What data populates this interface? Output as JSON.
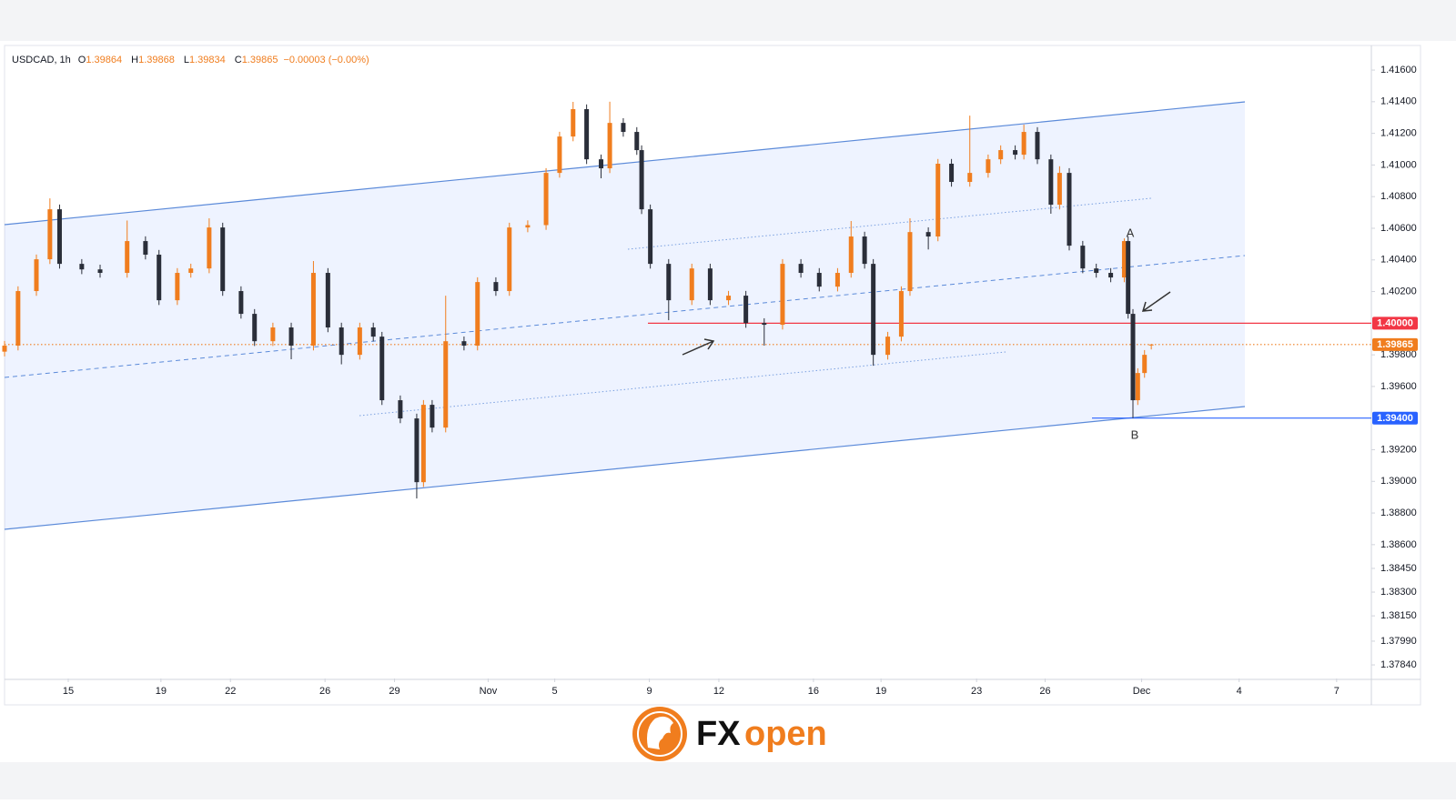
{
  "chart_data": {
    "type": "candlestick",
    "header": {
      "symbol": "USDCAD, 1h",
      "ohlc_prefixes": [
        "O",
        "H",
        "L",
        "C"
      ],
      "change": "−0.00003 (−0.00%)"
    },
    "x": [
      0,
      14,
      33,
      47,
      57,
      80,
      99,
      127,
      146,
      160,
      179,
      193,
      212,
      226,
      245,
      259,
      278,
      297,
      320,
      335,
      349,
      368,
      382,
      391,
      410,
      427,
      434,
      443,
      457,
      476,
      490,
      509,
      523,
      542,
      561,
      575,
      589,
      603,
      618,
      627,
      641,
      655,
      660,
      669,
      688,
      712,
      731,
      750,
      768,
      787,
      806,
      825,
      844,
      863,
      877,
      891,
      900,
      915,
      929,
      938,
      957,
      967,
      981,
      1000,
      1019,
      1032,
      1047,
      1056,
      1070,
      1084,
      1093,
      1103,
      1117,
      1131,
      1146,
      1160,
      1164,
      1169,
      1174,
      1181,
      1188
    ],
    "open": [
      1.3982,
      1.39858,
      1.40203,
      1.40404,
      1.4072,
      1.40375,
      1.4034,
      1.40318,
      1.40519,
      1.40433,
      1.40145,
      1.40318,
      1.40346,
      1.40605,
      1.40203,
      1.40059,
      1.39886,
      1.39973,
      1.39858,
      1.40318,
      1.39973,
      1.398,
      1.39973,
      1.39915,
      1.39513,
      1.39398,
      1.38995,
      1.39484,
      1.3934,
      1.39886,
      1.39858,
      1.4026,
      1.40203,
      1.40605,
      1.4062,
      1.4095,
      1.4118,
      1.41353,
      1.41036,
      1.40979,
      1.41266,
      1.41209,
      1.41094,
      1.4072,
      1.40375,
      1.40145,
      1.40346,
      1.40145,
      1.40174,
      1.40001,
      1.3999,
      1.40375,
      1.40318,
      1.40231,
      1.40318,
      1.40548,
      1.40375,
      1.398,
      1.39915,
      1.40203,
      1.40576,
      1.40548,
      1.41008,
      1.40893,
      1.4095,
      1.41036,
      1.41094,
      1.41065,
      1.41209,
      1.41036,
      1.40749,
      1.4095,
      1.4049,
      1.40346,
      1.40318,
      1.40289,
      1.40519,
      1.40059,
      1.39513,
      1.39685,
      1.39864
    ],
    "high": [
      1.39888,
      1.40233,
      1.40434,
      1.40789,
      1.4075,
      1.40405,
      1.4037,
      1.40649,
      1.40549,
      1.40463,
      1.40348,
      1.40376,
      1.40663,
      1.40635,
      1.40233,
      1.40089,
      1.40003,
      1.40003,
      1.40393,
      1.40348,
      1.40003,
      1.40003,
      1.40003,
      1.39945,
      1.39543,
      1.39428,
      1.39514,
      1.39514,
      1.40174,
      1.39916,
      1.4029,
      1.4029,
      1.40635,
      1.4065,
      1.4098,
      1.4121,
      1.41399,
      1.41383,
      1.41066,
      1.414,
      1.41296,
      1.41239,
      1.41124,
      1.4075,
      1.40405,
      1.40376,
      1.40376,
      1.40204,
      1.40204,
      1.40031,
      1.40405,
      1.40405,
      1.40348,
      1.40348,
      1.40646,
      1.40578,
      1.40405,
      1.39945,
      1.40233,
      1.40663,
      1.40606,
      1.41038,
      1.41038,
      1.41312,
      1.41066,
      1.41124,
      1.41124,
      1.41255,
      1.41239,
      1.41066,
      1.40992,
      1.4098,
      1.4052,
      1.40376,
      1.40348,
      1.40536,
      1.40549,
      1.40089,
      1.39715,
      1.3983,
      1.39868
    ],
    "low": [
      1.3979,
      1.39828,
      1.40173,
      1.40374,
      1.40345,
      1.4031,
      1.40288,
      1.40288,
      1.40403,
      1.40115,
      1.40115,
      1.40288,
      1.40316,
      1.40173,
      1.40029,
      1.39856,
      1.39856,
      1.39772,
      1.39828,
      1.39943,
      1.3974,
      1.3977,
      1.39885,
      1.39483,
      1.39368,
      1.38892,
      1.38965,
      1.3931,
      1.3931,
      1.39828,
      1.39828,
      1.40173,
      1.40173,
      1.40575,
      1.4059,
      1.4092,
      1.4115,
      1.41006,
      1.40916,
      1.40949,
      1.41179,
      1.41064,
      1.4069,
      1.40345,
      1.40019,
      1.40115,
      1.40115,
      1.40115,
      1.39971,
      1.39858,
      1.3996,
      1.40288,
      1.40201,
      1.40201,
      1.40288,
      1.40345,
      1.39731,
      1.3977,
      1.39885,
      1.40173,
      1.40466,
      1.40518,
      1.40863,
      1.40863,
      1.4092,
      1.41006,
      1.41035,
      1.41035,
      1.41006,
      1.40692,
      1.40719,
      1.4046,
      1.40316,
      1.40288,
      1.40259,
      1.40259,
      1.40029,
      1.394,
      1.39483,
      1.39655,
      1.39834
    ],
    "close": [
      1.39858,
      1.40203,
      1.40404,
      1.4072,
      1.40375,
      1.4034,
      1.40318,
      1.40519,
      1.40433,
      1.40145,
      1.40318,
      1.40346,
      1.40605,
      1.40203,
      1.40059,
      1.39886,
      1.39973,
      1.39858,
      1.40318,
      1.39973,
      1.398,
      1.39973,
      1.39915,
      1.39513,
      1.39398,
      1.38995,
      1.39484,
      1.3934,
      1.39886,
      1.39858,
      1.4026,
      1.40203,
      1.40605,
      1.4062,
      1.4095,
      1.4118,
      1.41353,
      1.41036,
      1.40979,
      1.41266,
      1.41209,
      1.41094,
      1.4072,
      1.40375,
      1.40145,
      1.40346,
      1.40145,
      1.40174,
      1.40001,
      1.3999,
      1.40375,
      1.40318,
      1.40231,
      1.40318,
      1.40548,
      1.40375,
      1.398,
      1.39915,
      1.40203,
      1.40576,
      1.40548,
      1.41008,
      1.40893,
      1.4095,
      1.41036,
      1.41094,
      1.41065,
      1.41209,
      1.41036,
      1.40749,
      1.4095,
      1.4049,
      1.40346,
      1.40318,
      1.40289,
      1.40519,
      1.40059,
      1.39513,
      1.39685,
      1.398,
      1.39865
    ],
    "up_color": "#f07d1e",
    "down_color": "#2a2e39",
    "xlim": [
      0,
      1416
    ],
    "xticks": [
      {
        "value": 66,
        "label": "15"
      },
      {
        "value": 162,
        "label": "19"
      },
      {
        "value": 234,
        "label": "22"
      },
      {
        "value": 332,
        "label": "26"
      },
      {
        "value": 404,
        "label": "29"
      },
      {
        "value": 501,
        "label": "Nov"
      },
      {
        "value": 570,
        "label": "5"
      },
      {
        "value": 668,
        "label": "9"
      },
      {
        "value": 740,
        "label": "12"
      },
      {
        "value": 838,
        "label": "16"
      },
      {
        "value": 908,
        "label": "19"
      },
      {
        "value": 1007,
        "label": "23"
      },
      {
        "value": 1078,
        "label": "26"
      },
      {
        "value": 1178,
        "label": "Dec"
      },
      {
        "value": 1279,
        "label": "4"
      },
      {
        "value": 1380,
        "label": "7"
      }
    ],
    "ylim": [
      1.37754,
      1.41744
    ],
    "yticks": [
      {
        "value": 1.416,
        "label": "1.41600"
      },
      {
        "value": 1.414,
        "label": "1.41400"
      },
      {
        "value": 1.412,
        "label": "1.41200"
      },
      {
        "value": 1.41,
        "label": "1.41000"
      },
      {
        "value": 1.408,
        "label": "1.40800"
      },
      {
        "value": 1.406,
        "label": "1.40600"
      },
      {
        "value": 1.404,
        "label": "1.40400"
      },
      {
        "value": 1.402,
        "label": "1.40200"
      },
      {
        "value": 1.398,
        "label": "1.39800"
      },
      {
        "value": 1.396,
        "label": "1.39600"
      },
      {
        "value": 1.392,
        "label": "1.39200"
      },
      {
        "value": 1.39,
        "label": "1.39000"
      },
      {
        "value": 1.388,
        "label": "1.38800"
      },
      {
        "value": 1.386,
        "label": "1.38600"
      },
      {
        "value": 1.3845,
        "label": "1.38450"
      },
      {
        "value": 1.383,
        "label": "1.38300"
      },
      {
        "value": 1.3815,
        "label": "1.38150"
      },
      {
        "value": 1.3799,
        "label": "1.37990"
      },
      {
        "value": 1.3784,
        "label": "1.37840"
      }
    ],
    "price_lines": [
      {
        "value": 1.4,
        "label": "1.40000",
        "color": "#f23645"
      },
      {
        "value": 1.39865,
        "label": "1.39865",
        "color": "#f07d1e"
      },
      {
        "value": 1.394,
        "label": "1.39400",
        "color": "#2962ff"
      }
    ],
    "annotations": [
      "A",
      "B"
    ]
  },
  "logo": {
    "fx": "FX",
    "open": "open"
  }
}
